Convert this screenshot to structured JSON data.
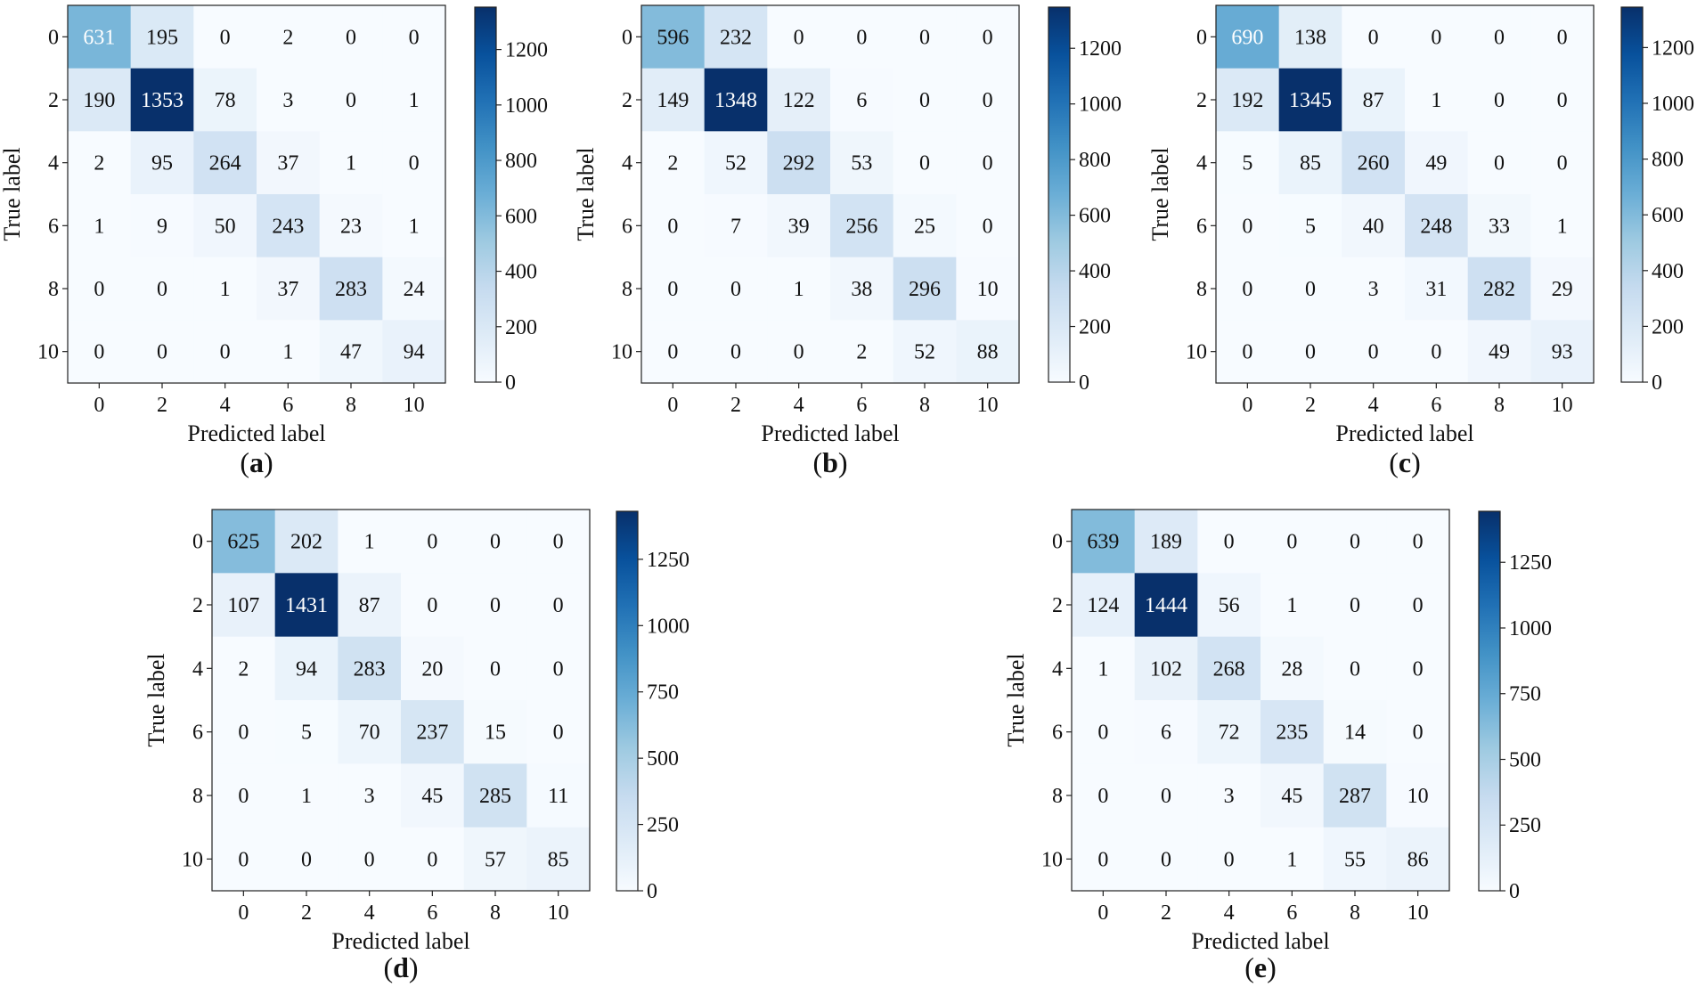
{
  "chart_data": [
    {
      "type": "heatmap",
      "panel": "a",
      "caption_letter": "a",
      "x_categories": [
        "0",
        "2",
        "4",
        "6",
        "8",
        "10"
      ],
      "y_categories": [
        "0",
        "2",
        "4",
        "6",
        "8",
        "10"
      ],
      "values": [
        [
          631,
          195,
          0,
          2,
          0,
          0
        ],
        [
          190,
          1353,
          78,
          3,
          0,
          1
        ],
        [
          2,
          95,
          264,
          37,
          1,
          0
        ],
        [
          1,
          9,
          50,
          243,
          23,
          1
        ],
        [
          0,
          0,
          1,
          37,
          283,
          24
        ],
        [
          0,
          0,
          0,
          1,
          47,
          94
        ]
      ],
      "xlabel": "Predicted label",
      "ylabel": "True label",
      "colorbar_ticks": [
        0,
        200,
        400,
        600,
        800,
        1000,
        1200
      ],
      "colorbar_max": 1353
    },
    {
      "type": "heatmap",
      "panel": "b",
      "caption_letter": "b",
      "x_categories": [
        "0",
        "2",
        "4",
        "6",
        "8",
        "10"
      ],
      "y_categories": [
        "0",
        "2",
        "4",
        "6",
        "8",
        "10"
      ],
      "values": [
        [
          596,
          232,
          0,
          0,
          0,
          0
        ],
        [
          149,
          1348,
          122,
          6,
          0,
          0
        ],
        [
          2,
          52,
          292,
          53,
          0,
          0
        ],
        [
          0,
          7,
          39,
          256,
          25,
          0
        ],
        [
          0,
          0,
          1,
          38,
          296,
          10
        ],
        [
          0,
          0,
          0,
          2,
          52,
          88
        ]
      ],
      "xlabel": "Predicted label",
      "ylabel": "True label",
      "colorbar_ticks": [
        0,
        200,
        400,
        600,
        800,
        1000,
        1200
      ],
      "colorbar_max": 1348
    },
    {
      "type": "heatmap",
      "panel": "c",
      "caption_letter": "c",
      "x_categories": [
        "0",
        "2",
        "4",
        "6",
        "8",
        "10"
      ],
      "y_categories": [
        "0",
        "2",
        "4",
        "6",
        "8",
        "10"
      ],
      "values": [
        [
          690,
          138,
          0,
          0,
          0,
          0
        ],
        [
          192,
          1345,
          87,
          1,
          0,
          0
        ],
        [
          5,
          85,
          260,
          49,
          0,
          0
        ],
        [
          0,
          5,
          40,
          248,
          33,
          1
        ],
        [
          0,
          0,
          3,
          31,
          282,
          29
        ],
        [
          0,
          0,
          0,
          0,
          49,
          93
        ]
      ],
      "xlabel": "Predicted label",
      "ylabel": "True label",
      "colorbar_ticks": [
        0,
        200,
        400,
        600,
        800,
        1000,
        1200
      ],
      "colorbar_max": 1345
    },
    {
      "type": "heatmap",
      "panel": "d",
      "caption_letter": "d",
      "x_categories": [
        "0",
        "2",
        "4",
        "6",
        "8",
        "10"
      ],
      "y_categories": [
        "0",
        "2",
        "4",
        "6",
        "8",
        "10"
      ],
      "values": [
        [
          625,
          202,
          1,
          0,
          0,
          0
        ],
        [
          107,
          1431,
          87,
          0,
          0,
          0
        ],
        [
          2,
          94,
          283,
          20,
          0,
          0
        ],
        [
          0,
          5,
          70,
          237,
          15,
          0
        ],
        [
          0,
          1,
          3,
          45,
          285,
          11
        ],
        [
          0,
          0,
          0,
          0,
          57,
          85
        ]
      ],
      "xlabel": "Predicted label",
      "ylabel": "True label",
      "colorbar_ticks": [
        0,
        250,
        500,
        750,
        1000,
        1250
      ],
      "colorbar_max": 1431
    },
    {
      "type": "heatmap",
      "panel": "e",
      "caption_letter": "e",
      "x_categories": [
        "0",
        "2",
        "4",
        "6",
        "8",
        "10"
      ],
      "y_categories": [
        "0",
        "2",
        "4",
        "6",
        "8",
        "10"
      ],
      "values": [
        [
          639,
          189,
          0,
          0,
          0,
          0
        ],
        [
          124,
          1444,
          56,
          1,
          0,
          0
        ],
        [
          1,
          102,
          268,
          28,
          0,
          0
        ],
        [
          0,
          6,
          72,
          235,
          14,
          0
        ],
        [
          0,
          0,
          3,
          45,
          287,
          10
        ],
        [
          0,
          0,
          0,
          1,
          55,
          86
        ]
      ],
      "xlabel": "Predicted label",
      "ylabel": "True label",
      "colorbar_ticks": [
        0,
        250,
        500,
        750,
        1000,
        1250
      ],
      "colorbar_max": 1444
    }
  ]
}
